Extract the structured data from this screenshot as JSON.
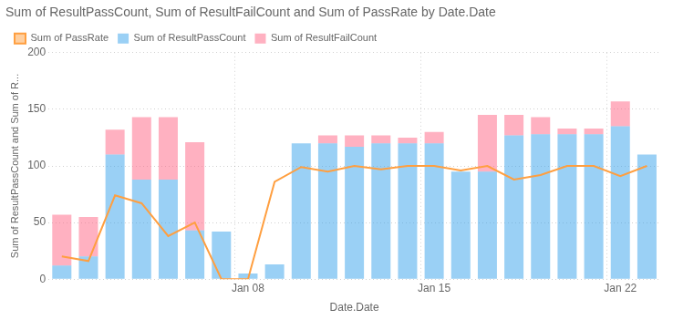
{
  "chart_data": {
    "type": "bar",
    "title": "Sum of ResultPassCount, Sum of ResultFailCount and Sum of PassRate by Date.Date",
    "xlabel": "Date.Date",
    "ylabel": "Sum of ResultPassCount and Sum of R...",
    "categories": [
      null,
      null,
      null,
      null,
      null,
      null,
      null,
      "Jan 08",
      null,
      null,
      null,
      null,
      null,
      null,
      "Jan 15",
      null,
      null,
      null,
      null,
      null,
      null,
      "Jan 22",
      null
    ],
    "series": [
      {
        "name": "Sum of ResultPassCount",
        "values": [
          12,
          20,
          110,
          88,
          88,
          43,
          42,
          5,
          13,
          120,
          120,
          117,
          120,
          120,
          120,
          95,
          95,
          127,
          128,
          128,
          128,
          135,
          110
        ]
      },
      {
        "name": "Sum of ResultFailCount",
        "values": [
          45,
          35,
          22,
          55,
          55,
          78,
          0,
          0,
          0,
          0,
          7,
          10,
          7,
          5,
          10,
          0,
          50,
          18,
          15,
          5,
          5,
          22,
          0
        ]
      },
      {
        "name": "Sum of PassRate",
        "type": "line",
        "values": [
          20,
          16,
          74,
          67,
          38,
          50,
          0,
          0,
          86,
          99,
          95,
          100,
          97,
          100,
          100,
          96,
          100,
          88,
          92,
          100,
          100,
          91,
          100
        ]
      }
    ],
    "ylim": [
      0,
      200
    ],
    "yticks": [
      0,
      50,
      100,
      150,
      200
    ],
    "stacked": true,
    "grid": true,
    "legend": "top"
  }
}
